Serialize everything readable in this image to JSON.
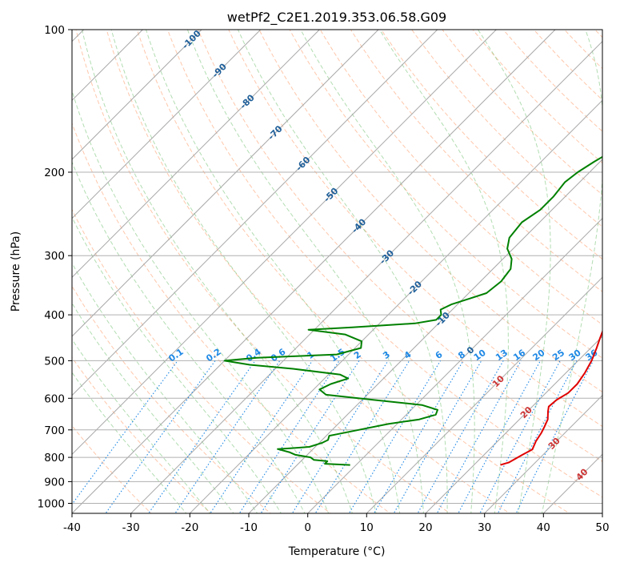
{
  "chart_data": {
    "type": "line",
    "subtype": "skew-t log-p diagram",
    "title": "wetPf2_C2E1.2019.353.06.58.G09",
    "xlabel": "Temperature (°C)",
    "ylabel": "Pressure (hPa)",
    "xlim": [
      -40,
      50
    ],
    "ylim": [
      1050,
      100
    ],
    "yscale": "log",
    "grid": true,
    "x_ticks": [
      -40,
      -30,
      -20,
      -10,
      0,
      10,
      20,
      30,
      40,
      50
    ],
    "y_ticks": [
      100,
      200,
      300,
      400,
      500,
      600,
      700,
      800,
      900,
      1000
    ],
    "colors": {
      "temperature": "#e00000",
      "dewpoint": "#008000",
      "dry_adiabats": "#ff9966",
      "moist_adiabats": "#66bb66",
      "mixing_ratio": "#1e88e5",
      "isotherm_label": "#1f5f99",
      "isotherm_label_warm": "#cc3333"
    },
    "isotherm_labels": [
      "-100",
      "-90",
      "-80",
      "-70",
      "-60",
      "-50",
      "-40",
      "-30",
      "-20",
      "-10",
      "0",
      "10",
      "20",
      "30",
      "40"
    ],
    "mixing_ratio_labels": [
      "0.1",
      "0.2",
      "0.4",
      "0.6",
      "1",
      "1.5",
      "2",
      "3",
      "4",
      "6",
      "8",
      "10",
      "13",
      "16",
      "20",
      "25",
      "30",
      "36"
    ],
    "series": [
      {
        "role": "temperature",
        "points": [
          [
            24.5,
            830
          ],
          [
            25.5,
            820
          ],
          [
            26.5,
            790
          ],
          [
            27.3,
            770
          ],
          [
            26.5,
            740
          ],
          [
            26,
            710
          ],
          [
            25.5,
            690
          ],
          [
            24.8,
            665
          ],
          [
            23.5,
            640
          ],
          [
            22.8,
            625
          ],
          [
            23,
            605
          ],
          [
            23.8,
            585
          ],
          [
            23.8,
            560
          ],
          [
            23.2,
            530
          ],
          [
            22.3,
            500
          ],
          [
            21,
            470
          ],
          [
            20,
            450
          ],
          [
            19,
            430
          ],
          [
            18.5,
            410
          ],
          [
            17.5,
            390
          ],
          [
            16.5,
            370
          ],
          [
            15,
            350
          ],
          [
            13.5,
            335
          ],
          [
            12,
            320
          ],
          [
            11,
            310
          ],
          [
            9.5,
            295
          ],
          [
            8.5,
            280
          ],
          [
            7.5,
            265
          ],
          [
            6.5,
            250
          ],
          [
            5.5,
            235
          ],
          [
            4.5,
            220
          ],
          [
            3.5,
            205
          ],
          [
            2.5,
            190
          ],
          [
            1.8,
            175
          ],
          [
            1,
            165
          ],
          [
            0.5,
            155
          ],
          [
            0.5,
            145
          ],
          [
            1.5,
            135
          ],
          [
            1.5,
            125
          ],
          [
            1,
            115
          ],
          [
            1,
            105
          ],
          [
            1.3,
            100
          ]
        ]
      },
      {
        "role": "dewpoint",
        "points": [
          [
            -1,
            830
          ],
          [
            -5.5,
            825
          ],
          [
            -5.5,
            815
          ],
          [
            -8,
            810
          ],
          [
            -9,
            800
          ],
          [
            -12,
            790
          ],
          [
            -13.5,
            780
          ],
          [
            -16,
            768
          ],
          [
            -14,
            765
          ],
          [
            -11,
            760
          ],
          [
            -9.5,
            745
          ],
          [
            -9,
            735
          ],
          [
            -9.5,
            720
          ],
          [
            -8.5,
            715
          ],
          [
            -5.5,
            700
          ],
          [
            -1.5,
            680
          ],
          [
            3,
            665
          ],
          [
            5,
            650
          ],
          [
            4.5,
            635
          ],
          [
            1,
            620
          ],
          [
            -8,
            605
          ],
          [
            -17,
            590
          ],
          [
            -19,
            575
          ],
          [
            -18,
            560
          ],
          [
            -16,
            545
          ],
          [
            -18,
            535
          ],
          [
            -27,
            520
          ],
          [
            -35,
            510
          ],
          [
            -40,
            500
          ],
          [
            -35,
            493
          ],
          [
            -22,
            485
          ],
          [
            -19,
            470
          ],
          [
            -20,
            455
          ],
          [
            -24,
            440
          ],
          [
            -31,
            430
          ],
          [
            -24,
            425
          ],
          [
            -14,
            417
          ],
          [
            -11,
            410
          ],
          [
            -11,
            400
          ],
          [
            -12,
            390
          ],
          [
            -11,
            380
          ],
          [
            -9,
            370
          ],
          [
            -7,
            360
          ],
          [
            -6.5,
            340
          ],
          [
            -7,
            320
          ],
          [
            -8.5,
            305
          ],
          [
            -11,
            290
          ],
          [
            -12.5,
            275
          ],
          [
            -13,
            255
          ],
          [
            -12,
            240
          ],
          [
            -12,
            225
          ],
          [
            -12.5,
            210
          ],
          [
            -12,
            200
          ],
          [
            -11,
            190
          ],
          [
            -9,
            175
          ],
          [
            -7,
            165
          ],
          [
            -6,
            155
          ],
          [
            -5,
            145
          ],
          [
            -4.5,
            135
          ],
          [
            -4,
            125
          ],
          [
            -3,
            115
          ],
          [
            -1,
            107
          ],
          [
            0.5,
            100
          ]
        ]
      }
    ]
  }
}
